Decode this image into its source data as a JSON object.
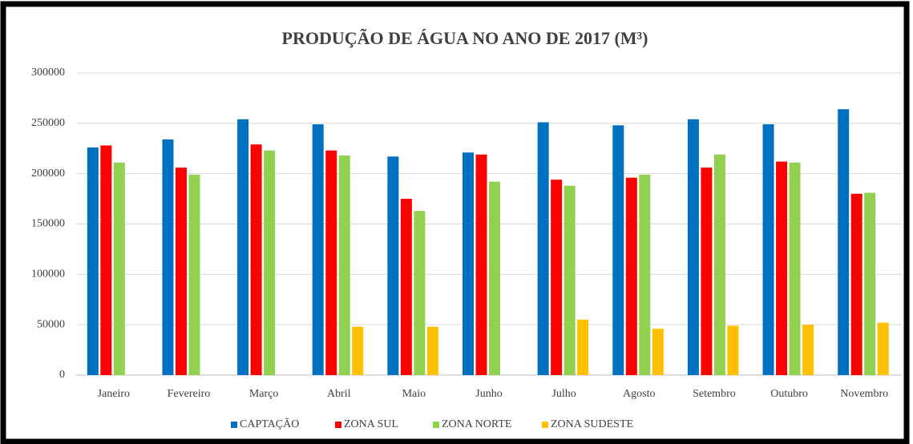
{
  "chart_data": {
    "type": "bar",
    "title": "PRODUÇÃO DE ÁGUA NO ANO DE 2017 (M³)",
    "categories": [
      "Janeiro",
      "Fevereiro",
      "Março",
      "Abril",
      "Maio",
      "Junho",
      "Julho",
      "Agosto",
      "Setembro",
      "Outubro",
      "Novembro"
    ],
    "series": [
      {
        "name": "CAPTAÇÃO",
        "color": "#0070c0",
        "values": [
          226000,
          234000,
          254000,
          249000,
          217000,
          221000,
          251000,
          248000,
          254000,
          249000,
          264000
        ]
      },
      {
        "name": "ZONA SUL",
        "color": "#ff0000",
        "values": [
          228000,
          206000,
          229000,
          223000,
          175000,
          219000,
          194000,
          196000,
          206000,
          212000,
          180000
        ]
      },
      {
        "name": "ZONA NORTE",
        "color": "#92d050",
        "values": [
          211000,
          199000,
          223000,
          218000,
          163000,
          192000,
          188000,
          199000,
          219000,
          211000,
          181000
        ]
      },
      {
        "name": "ZONA SUDESTE",
        "color": "#ffc000",
        "values": [
          null,
          null,
          null,
          48000,
          48000,
          null,
          55000,
          46000,
          49000,
          50000,
          52000
        ]
      }
    ],
    "ylim": [
      0,
      300000
    ],
    "yticks": [
      0,
      50000,
      100000,
      150000,
      200000,
      250000,
      300000
    ],
    "grid": true,
    "legend": "bottom"
  }
}
